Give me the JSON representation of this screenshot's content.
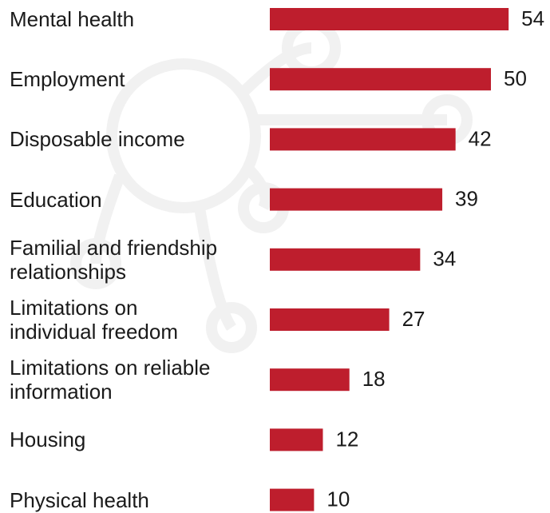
{
  "chart_data": {
    "type": "bar",
    "orientation": "horizontal",
    "categories": [
      "Mental health",
      "Employment",
      "Disposable income",
      "Education",
      "Familial and friendship relationships",
      "Limitations on individual freedom",
      "Limitations on reliable information",
      "Housing",
      "Physical health"
    ],
    "values": [
      54,
      50,
      42,
      39,
      34,
      27,
      18,
      12,
      10
    ],
    "color": "#be1e2d"
  }
}
